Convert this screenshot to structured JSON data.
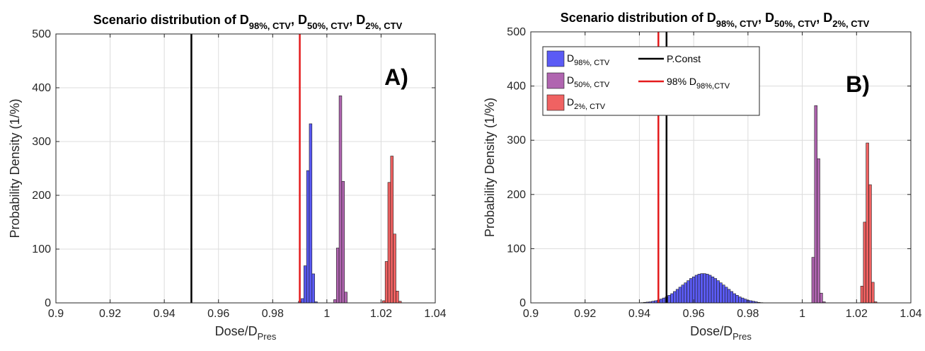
{
  "chart_data": [
    {
      "type": "bar",
      "panel": "A)",
      "title": {
        "main": "Scenario distribution of D",
        "subs": [
          "98%, CTV",
          "50%, CTV",
          "2%, CTV"
        ],
        "seps": [
          ", D",
          ", D",
          " & D"
        ]
      },
      "xlabel": {
        "main": "Dose/D",
        "sub": "Pres"
      },
      "ylabel": "Probability Density (1/%)",
      "xlim": [
        0.9,
        1.04
      ],
      "ylim": [
        0,
        500
      ],
      "xticks": [
        "0.9",
        "0.92",
        "0.94",
        "0.96",
        "0.98",
        "1",
        "1.02",
        "1.04"
      ],
      "yticks": [
        "0",
        "100",
        "200",
        "300",
        "400",
        "500"
      ],
      "grid": true,
      "bin_width": 0.001,
      "series": [
        {
          "name": "D98%, CTV",
          "color": "#5b5bf5",
          "x": [
            0.99,
            0.991,
            0.992,
            0.993,
            0.994,
            0.995,
            0.996
          ],
          "values": [
            3,
            8,
            69,
            246,
            333,
            54,
            2
          ]
        },
        {
          "name": "D50%, CTV",
          "color": "#b065b0",
          "x": [
            1.003,
            1.004,
            1.005,
            1.006,
            1.007
          ],
          "values": [
            6,
            102,
            385,
            226,
            20
          ]
        },
        {
          "name": "D2%, CTV",
          "color": "#f06262",
          "x": [
            1.021,
            1.022,
            1.023,
            1.024,
            1.025,
            1.026,
            1.027
          ],
          "values": [
            4,
            77,
            224,
            273,
            128,
            22,
            3
          ]
        }
      ],
      "lines": [
        {
          "name": "P.Const",
          "x": 0.95,
          "color": "#000000"
        },
        {
          "name": "98% D98%,CTV",
          "x": 0.99,
          "color": "#e41a1c"
        }
      ]
    },
    {
      "type": "bar",
      "panel": "B)",
      "title": {
        "main": "Scenario distribution of D",
        "subs": [
          "98%, CTV",
          "50%, CTV",
          "2%, CTV"
        ],
        "seps": [
          ", D",
          ", D",
          " & D"
        ]
      },
      "xlabel": {
        "main": "Dose/D",
        "sub": "Pres"
      },
      "ylabel": "Probability Density (1/%)",
      "xlim": [
        0.9,
        1.04
      ],
      "ylim": [
        0,
        500
      ],
      "xticks": [
        "0.9",
        "0.92",
        "0.94",
        "0.96",
        "0.98",
        "1",
        "1.02",
        "1.04"
      ],
      "yticks": [
        "0",
        "100",
        "200",
        "300",
        "400",
        "500"
      ],
      "grid": true,
      "bin_width": 0.001,
      "series": [
        {
          "name": "D98%, CTV",
          "color": "#5b5bf5",
          "x": [
            0.941,
            0.942,
            0.943,
            0.944,
            0.945,
            0.946,
            0.947,
            0.948,
            0.949,
            0.95,
            0.951,
            0.952,
            0.953,
            0.954,
            0.955,
            0.956,
            0.957,
            0.958,
            0.959,
            0.96,
            0.961,
            0.962,
            0.963,
            0.964,
            0.965,
            0.966,
            0.967,
            0.968,
            0.969,
            0.97,
            0.971,
            0.972,
            0.973,
            0.974,
            0.975,
            0.976,
            0.977,
            0.978,
            0.979,
            0.98,
            0.981,
            0.982,
            0.983,
            0.984,
            0.985
          ],
          "values": [
            0.5,
            1,
            1.5,
            2,
            3,
            4,
            5,
            7,
            9,
            11,
            14,
            17,
            21,
            25,
            29,
            33,
            37,
            41,
            45,
            48,
            51,
            53,
            54,
            54,
            53,
            51,
            48,
            45,
            41,
            37,
            33,
            29,
            25,
            21,
            17,
            14,
            11,
            9,
            7,
            5,
            4,
            3,
            2,
            1,
            0.5
          ]
        },
        {
          "name": "D50%, CTV",
          "color": "#b065b0",
          "x": [
            1.004,
            1.005,
            1.006,
            1.007,
            1.008
          ],
          "values": [
            84,
            364,
            266,
            18,
            2
          ]
        },
        {
          "name": "D2%, CTV",
          "color": "#f06262",
          "x": [
            1.022,
            1.023,
            1.024,
            1.025,
            1.026,
            1.027
          ],
          "values": [
            31,
            149,
            295,
            218,
            38,
            2
          ]
        }
      ],
      "lines": [
        {
          "name": "P.Const",
          "x": 0.95,
          "color": "#000000"
        },
        {
          "name": "98% D98%,CTV",
          "x": 0.947,
          "color": "#e41a1c"
        }
      ],
      "legend": {
        "placement": "top-left",
        "entries": [
          {
            "main": "D",
            "sub": "98%, CTV",
            "kind": "patch",
            "color": "#5b5bf5"
          },
          {
            "main": "P.Const",
            "sub": "",
            "kind": "line",
            "color": "#000000"
          },
          {
            "main": "D",
            "sub": "50%, CTV",
            "kind": "patch",
            "color": "#b065b0"
          },
          {
            "main": "98% D",
            "sub": "98%,CTV",
            "kind": "line",
            "color": "#e41a1c"
          },
          {
            "main": "D",
            "sub": "2%, CTV",
            "kind": "patch",
            "color": "#f06262"
          }
        ]
      }
    }
  ]
}
